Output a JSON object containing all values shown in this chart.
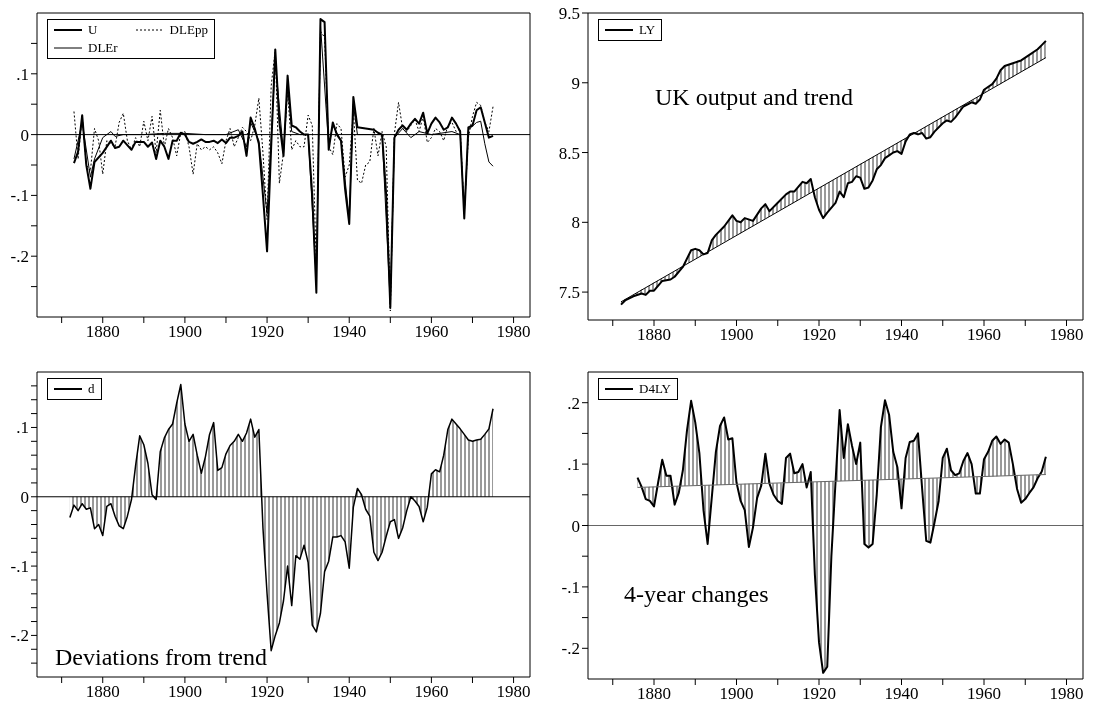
{
  "chart_data": [
    {
      "type": "line",
      "legend": "top left",
      "xlim": [
        1864,
        1984
      ],
      "ylim": [
        -0.3,
        0.2
      ],
      "xticks": [
        {
          "value": 1870,
          "label": null
        },
        1880,
        {
          "value": 1890,
          "label": null
        },
        1900,
        {
          "value": 1910,
          "label": null
        },
        1920,
        {
          "value": 1930,
          "label": null
        },
        1940,
        {
          "value": 1950,
          "label": null
        },
        1960,
        {
          "value": 1970,
          "label": null
        },
        1980
      ],
      "yticks": [
        {
          "value": -0.25,
          "label": null
        },
        {
          "value": -0.2,
          "label": "-.2"
        },
        {
          "value": -0.15,
          "label": null
        },
        {
          "value": -0.1,
          "label": "-.1"
        },
        {
          "value": -0.05,
          "label": null
        },
        0,
        {
          "value": 0.05,
          "label": null
        },
        {
          "value": 0.1,
          "label": ".1"
        },
        {
          "value": 0.15,
          "label": null
        }
      ],
      "ref_lines": [
        {
          "axis": "y",
          "value": 0,
          "color": "#000000"
        }
      ],
      "series": [
        {
          "name": "U",
          "color": "#000000",
          "line_style": "solid",
          "x": [
            1873,
            1874,
            1875,
            1876,
            1877,
            1878,
            1880,
            1882,
            1883,
            1884,
            1885,
            1887,
            1888,
            1890,
            1891,
            1892,
            1893,
            1894,
            1895,
            1896,
            1897,
            1898,
            1899,
            1900,
            1901,
            1902,
            1903,
            1904,
            1905,
            1906,
            1907,
            1908,
            1909,
            1910,
            1911,
            1912,
            1913,
            1914,
            1915,
            1916,
            1917,
            1918,
            1919,
            1920,
            1921,
            1922,
            1923,
            1924,
            1925,
            1926,
            1927,
            1928,
            1929,
            1930,
            1931,
            1932,
            1933,
            1934,
            1935,
            1936,
            1937,
            1938,
            1939,
            1940,
            1941,
            1942,
            1944,
            1946,
            1947,
            1948,
            1949,
            1950,
            1951,
            1952,
            1953,
            1954,
            1955,
            1956,
            1957,
            1958,
            1959,
            1960,
            1961,
            1962,
            1963,
            1964,
            1965,
            1966,
            1967,
            1968,
            1969,
            1970,
            1971,
            1972,
            1973,
            1974,
            1975
          ],
          "values": [
            -0.047,
            -0.028,
            0.032,
            -0.05,
            -0.089,
            -0.045,
            -0.03,
            -0.01,
            -0.022,
            -0.02,
            -0.01,
            -0.025,
            -0.012,
            -0.012,
            -0.02,
            -0.013,
            -0.04,
            -0.01,
            -0.02,
            -0.04,
            -0.01,
            -0.01,
            0.003,
            0,
            -0.012,
            -0.015,
            -0.012,
            -0.008,
            -0.012,
            -0.012,
            -0.01,
            -0.014,
            -0.008,
            -0.014,
            -0.005,
            -0.005,
            -0.002,
            0.005,
            -0.035,
            0.028,
            0.01,
            -0.015,
            -0.1,
            -0.192,
            -0.02,
            0.14,
            0.02,
            -0.035,
            0.097,
            0.015,
            0.012,
            0.005,
            0,
            0,
            -0.1,
            -0.26,
            0.19,
            0.185,
            -0.025,
            0.02,
            0,
            -0.01,
            -0.09,
            -0.147,
            0.062,
            0.012,
            0.01,
            0.008,
            0.003,
            0,
            -0.1,
            -0.285,
            -0.005,
            0.008,
            0.015,
            0.008,
            0.018,
            0.026,
            0.018,
            0.036,
            0.002,
            0.018,
            0.028,
            0.02,
            0.008,
            0.012,
            0.028,
            0.018,
            0.005,
            -0.138,
            0.012,
            0.015,
            0.04,
            0.045,
            0.02,
            -0.005,
            -0.002
          ]
        },
        {
          "name": "DLEr",
          "color": "#000000",
          "line_style": "solid",
          "x": [
            1873,
            1875,
            1877,
            1878,
            1880,
            1882,
            1883,
            1885,
            1890,
            1895,
            1900,
            1905,
            1910,
            1913,
            1915,
            1916,
            1918,
            1920,
            1922,
            1924,
            1925,
            1926,
            1928,
            1930,
            1932,
            1933,
            1935,
            1936,
            1938,
            1940,
            1941,
            1942,
            1946,
            1948,
            1950,
            1951,
            1953,
            1955,
            1957,
            1960,
            1965,
            1967,
            1968,
            1969,
            1971,
            1972,
            1973,
            1974,
            1975
          ],
          "values": [
            -0.04,
            0.02,
            -0.07,
            -0.04,
            -0.005,
            0.005,
            -0.003,
            0,
            0,
            0.002,
            0.002,
            0,
            0,
            0.008,
            -0.02,
            0.02,
            -0.01,
            -0.13,
            0.12,
            -0.03,
            0.08,
            0.005,
            0,
            0,
            -0.24,
            0.18,
            -0.02,
            0.015,
            -0.01,
            -0.14,
            0.05,
            0,
            0,
            0,
            -0.28,
            -0.005,
            0.01,
            -0.005,
            0.005,
            0,
            0.005,
            0,
            -0.13,
            0.008,
            0.02,
            0.022,
            -0.015,
            -0.045,
            -0.052
          ]
        },
        {
          "name": "DLEpp",
          "color": "#000000",
          "line_style": "dotted",
          "x": [
            1873,
            1874,
            1875,
            1876,
            1877,
            1878,
            1879,
            1880,
            1881,
            1883,
            1884,
            1885,
            1886,
            1887,
            1888,
            1889,
            1890,
            1891,
            1892,
            1893,
            1894,
            1895,
            1896,
            1897,
            1898,
            1899,
            1900,
            1901,
            1902,
            1903,
            1904,
            1905,
            1906,
            1907,
            1908,
            1909,
            1910,
            1911,
            1912,
            1913,
            1914,
            1915,
            1916,
            1917,
            1918,
            1919,
            1920,
            1921,
            1922,
            1923,
            1924,
            1925,
            1926,
            1927,
            1928,
            1929,
            1930,
            1931,
            1932,
            1933,
            1934,
            1935,
            1936,
            1937,
            1938,
            1939,
            1940,
            1941,
            1942,
            1943,
            1944,
            1945,
            1946,
            1947,
            1948,
            1949,
            1950,
            1951,
            1952,
            1953,
            1954,
            1955,
            1956,
            1957,
            1958,
            1959,
            1960,
            1961,
            1962,
            1963,
            1964,
            1965,
            1966,
            1967,
            1968,
            1969,
            1970,
            1971,
            1972,
            1973,
            1974,
            1975
          ],
          "values": [
            0.038,
            -0.04,
            0.03,
            -0.05,
            -0.06,
            0.01,
            -0.01,
            -0.065,
            -0.01,
            -0.02,
            0.02,
            0.035,
            -0.01,
            -0.025,
            -0.005,
            -0.02,
            0.022,
            -0.01,
            0.03,
            -0.03,
            0.04,
            -0.02,
            0.01,
            -0.005,
            -0.035,
            0.003,
            0.005,
            -0.02,
            -0.065,
            -0.015,
            -0.025,
            -0.02,
            -0.025,
            -0.02,
            -0.03,
            -0.048,
            -0.01,
            0.01,
            -0.02,
            -0.005,
            0.012,
            0.005,
            -0.01,
            0.015,
            0.06,
            -0.03,
            -0.14,
            0.08,
            0.14,
            -0.08,
            -0.03,
            0.07,
            -0.025,
            -0.01,
            -0.02,
            -0.02,
            0.032,
            0.015,
            -0.22,
            0.17,
            0.16,
            -0.02,
            -0.033,
            0.018,
            0.01,
            -0.07,
            -0.05,
            0.04,
            -0.075,
            -0.08,
            -0.05,
            -0.045,
            0.01,
            -0.035,
            0.005,
            -0.02,
            -0.29,
            0.002,
            0.053,
            0.01,
            0.005,
            0.015,
            0.025,
            0.005,
            0.03,
            -0.013,
            -0.005,
            0.01,
            0.005,
            -0.01,
            0.015,
            0.02,
            0.005,
            0.01,
            -0.13,
            -0.005,
            0.03,
            0.053,
            0.048,
            0.02,
            0.005,
            0.046
          ]
        }
      ]
    },
    {
      "type": "line",
      "title": "UK output and trend",
      "legend": "top left",
      "xlim": [
        1864,
        1984
      ],
      "ylim": [
        7.3,
        9.5
      ],
      "xticks": [
        {
          "value": 1870,
          "label": null
        },
        1880,
        {
          "value": 1890,
          "label": null
        },
        1900,
        {
          "value": 1910,
          "label": null
        },
        1920,
        {
          "value": 1930,
          "label": null
        },
        1940,
        {
          "value": 1950,
          "label": null
        },
        1960,
        {
          "value": 1970,
          "label": null
        },
        1980
      ],
      "yticks": [
        7.5,
        8,
        8.5,
        9,
        9.5
      ],
      "series": [
        {
          "name": "LY",
          "color": "#000000",
          "line_style": "solid",
          "x": [
            1872,
            1873,
            1875,
            1877,
            1878,
            1879,
            1880,
            1882,
            1884,
            1885,
            1887,
            1889,
            1890,
            1891,
            1892,
            1893,
            1894,
            1895,
            1897,
            1899,
            1900,
            1901,
            1902,
            1904,
            1906,
            1907,
            1908,
            1910,
            1912,
            1913,
            1914,
            1916,
            1917,
            1918,
            1919,
            1920,
            1921,
            1922,
            1924,
            1925,
            1926,
            1927,
            1928,
            1929,
            1930,
            1931,
            1932,
            1933,
            1934,
            1935,
            1936,
            1937,
            1938,
            1939,
            1940,
            1941,
            1942,
            1943,
            1944,
            1945,
            1946,
            1947,
            1948,
            1950,
            1951,
            1952,
            1953,
            1955,
            1957,
            1958,
            1959,
            1960,
            1962,
            1963,
            1964,
            1965,
            1967,
            1969,
            1971,
            1973,
            1974,
            1975
          ],
          "values": [
            7.41,
            7.44,
            7.47,
            7.49,
            7.48,
            7.51,
            7.51,
            7.58,
            7.59,
            7.61,
            7.68,
            7.8,
            7.81,
            7.8,
            7.77,
            7.78,
            7.87,
            7.91,
            7.97,
            8.05,
            8.01,
            8.0,
            8.03,
            8.01,
            8.1,
            8.13,
            8.08,
            8.14,
            8.2,
            8.22,
            8.22,
            8.29,
            8.28,
            8.31,
            8.18,
            8.09,
            8.03,
            8.07,
            8.14,
            8.22,
            8.18,
            8.28,
            8.29,
            8.33,
            8.32,
            8.24,
            8.25,
            8.3,
            8.38,
            8.41,
            8.46,
            8.48,
            8.5,
            8.51,
            8.49,
            8.58,
            8.63,
            8.64,
            8.63,
            8.64,
            8.6,
            8.61,
            8.65,
            8.71,
            8.73,
            8.72,
            8.75,
            8.83,
            8.86,
            8.85,
            8.88,
            8.95,
            8.99,
            9.03,
            9.09,
            9.12,
            9.14,
            9.16,
            9.2,
            9.24,
            9.27,
            9.3
          ],
          "lower": [
            7.43,
            7.45,
            7.48,
            7.52,
            7.53,
            7.55,
            7.57,
            7.6,
            7.63,
            7.65,
            7.69,
            7.72,
            7.74,
            7.75,
            7.77,
            7.79,
            7.8,
            7.82,
            7.86,
            7.89,
            7.91,
            7.92,
            7.94,
            7.97,
            8.01,
            8.03,
            8.04,
            8.08,
            8.11,
            8.13,
            8.14,
            8.18,
            8.2,
            8.21,
            8.23,
            8.25,
            8.26,
            8.28,
            8.31,
            8.33,
            8.35,
            8.36,
            8.38,
            8.4,
            8.42,
            8.43,
            8.45,
            8.47,
            8.48,
            8.5,
            8.52,
            8.53,
            8.55,
            8.57,
            8.59,
            8.6,
            8.62,
            8.64,
            8.65,
            8.67,
            8.69,
            8.7,
            8.72,
            8.76,
            8.77,
            8.79,
            8.81,
            8.84,
            8.87,
            8.89,
            8.91,
            8.93,
            8.96,
            8.98,
            8.99,
            9.01,
            9.04,
            9.08,
            9.11,
            9.15,
            9.16,
            9.18
          ],
          "upper": [
            7.41,
            7.44,
            7.47,
            7.49,
            7.48,
            7.51,
            7.51,
            7.58,
            7.59,
            7.61,
            7.68,
            7.8,
            7.81,
            7.8,
            7.77,
            7.78,
            7.87,
            7.91,
            7.97,
            8.05,
            8.01,
            8.0,
            8.03,
            8.01,
            8.1,
            8.13,
            8.08,
            8.14,
            8.2,
            8.22,
            8.22,
            8.29,
            8.28,
            8.31,
            8.18,
            8.09,
            8.03,
            8.07,
            8.14,
            8.22,
            8.18,
            8.28,
            8.29,
            8.33,
            8.32,
            8.24,
            8.25,
            8.3,
            8.38,
            8.41,
            8.46,
            8.48,
            8.5,
            8.51,
            8.49,
            8.58,
            8.63,
            8.64,
            8.63,
            8.64,
            8.6,
            8.61,
            8.65,
            8.71,
            8.73,
            8.72,
            8.75,
            8.83,
            8.86,
            8.85,
            8.88,
            8.95,
            8.99,
            9.03,
            9.09,
            9.12,
            9.14,
            9.16,
            9.2,
            9.24,
            9.27,
            9.3
          ]
        },
        {
          "color": "#000000",
          "line_style": "solid",
          "x": [
            1872,
            1975
          ],
          "values": [
            7.43,
            9.18
          ]
        }
      ]
    },
    {
      "type": "area",
      "title": "Deviations from trend",
      "legend": "top left",
      "xlim": [
        1864,
        1984
      ],
      "ylim": [
        -0.26,
        0.18
      ],
      "xticks": [
        {
          "value": 1870,
          "label": null
        },
        1880,
        {
          "value": 1890,
          "label": null
        },
        1900,
        {
          "value": 1910,
          "label": null
        },
        1920,
        {
          "value": 1930,
          "label": null
        },
        1940,
        {
          "value": 1950,
          "label": null
        },
        1960,
        {
          "value": 1970,
          "label": null
        },
        1980
      ],
      "yticks": [
        {
          "value": -0.24,
          "label": null
        },
        {
          "value": -0.22,
          "label": null
        },
        {
          "value": -0.2,
          "label": "-.2"
        },
        {
          "value": -0.18,
          "label": null
        },
        {
          "value": -0.16,
          "label": null
        },
        {
          "value": -0.14,
          "label": null
        },
        {
          "value": -0.12,
          "label": null
        },
        {
          "value": -0.1,
          "label": "-.1"
        },
        {
          "value": -0.08,
          "label": null
        },
        {
          "value": -0.06,
          "label": null
        },
        {
          "value": -0.04,
          "label": null
        },
        {
          "value": -0.02,
          "label": null
        },
        0,
        {
          "value": 0.02,
          "label": null
        },
        {
          "value": 0.04,
          "label": null
        },
        {
          "value": 0.06,
          "label": null
        },
        {
          "value": 0.08,
          "label": null
        },
        {
          "value": 0.1,
          "label": ".1"
        },
        {
          "value": 0.12,
          "label": null
        },
        {
          "value": 0.14,
          "label": null
        },
        {
          "value": 0.16,
          "label": null
        }
      ],
      "ref_lines": [
        {
          "axis": "y",
          "value": 0,
          "color": "#000000"
        }
      ],
      "series": [
        {
          "name": "d",
          "color": "#000000",
          "x": [
            1872,
            1873,
            1874,
            1875,
            1876,
            1877,
            1878,
            1879,
            1880,
            1881,
            1882,
            1883,
            1884,
            1885,
            1886,
            1887,
            1888,
            1889,
            1890,
            1891,
            1892,
            1893,
            1894,
            1895,
            1896,
            1897,
            1898,
            1899,
            1900,
            1901,
            1902,
            1903,
            1904,
            1905,
            1906,
            1907,
            1908,
            1909,
            1910,
            1911,
            1912,
            1913,
            1914,
            1915,
            1916,
            1917,
            1918,
            1919,
            1920,
            1921,
            1922,
            1923,
            1924,
            1925,
            1926,
            1927,
            1928,
            1929,
            1930,
            1931,
            1932,
            1933,
            1934,
            1935,
            1936,
            1937,
            1938,
            1939,
            1940,
            1941,
            1942,
            1943,
            1944,
            1945,
            1946,
            1947,
            1948,
            1949,
            1950,
            1951,
            1952,
            1953,
            1954,
            1955,
            1956,
            1957,
            1958,
            1959,
            1960,
            1961,
            1962,
            1963,
            1964,
            1965,
            1966,
            1967,
            1968,
            1969,
            1970,
            1971,
            1972,
            1973,
            1974,
            1975
          ],
          "values": [
            -0.03,
            -0.012,
            -0.02,
            -0.01,
            -0.018,
            -0.016,
            -0.046,
            -0.04,
            -0.056,
            -0.014,
            -0.01,
            -0.028,
            -0.042,
            -0.046,
            -0.028,
            -0.004,
            0.045,
            0.088,
            0.075,
            0.048,
            0.003,
            -0.004,
            0.065,
            0.085,
            0.097,
            0.105,
            0.135,
            0.162,
            0.105,
            0.08,
            0.09,
            0.06,
            0.034,
            0.058,
            0.09,
            0.107,
            0.038,
            0.042,
            0.062,
            0.074,
            0.08,
            0.09,
            0.08,
            0.092,
            0.112,
            0.086,
            0.097,
            -0.045,
            -0.14,
            -0.222,
            -0.2,
            -0.182,
            -0.15,
            -0.1,
            -0.157,
            -0.085,
            -0.09,
            -0.07,
            -0.095,
            -0.185,
            -0.195,
            -0.168,
            -0.108,
            -0.093,
            -0.058,
            -0.058,
            -0.056,
            -0.065,
            -0.103,
            -0.015,
            0.012,
            0.003,
            -0.018,
            -0.028,
            -0.08,
            -0.092,
            -0.08,
            -0.057,
            -0.036,
            -0.033,
            -0.06,
            -0.045,
            -0.02,
            0,
            -0.006,
            -0.014,
            -0.036,
            -0.015,
            0.033,
            0.039,
            0.036,
            0.06,
            0.097,
            0.112,
            0.105,
            0.098,
            0.09,
            0.082,
            0.08,
            0.082,
            0.083,
            0.09,
            0.098,
            0.127
          ]
        }
      ]
    },
    {
      "type": "line",
      "title": "4-year changes",
      "legend": "top left",
      "xlim": [
        1864,
        1984
      ],
      "ylim": [
        -0.25,
        0.25
      ],
      "xticks": [
        {
          "value": 1870,
          "label": null
        },
        1880,
        {
          "value": 1890,
          "label": null
        },
        1900,
        {
          "value": 1910,
          "label": null
        },
        1920,
        {
          "value": 1930,
          "label": null
        },
        1940,
        {
          "value": 1950,
          "label": null
        },
        1960,
        {
          "value": 1970,
          "label": null
        },
        1980
      ],
      "yticks": [
        {
          "value": -0.2,
          "label": "-.2"
        },
        {
          "value": -0.15,
          "label": null
        },
        {
          "value": -0.1,
          "label": "-.1"
        },
        {
          "value": -0.05,
          "label": null
        },
        0,
        {
          "value": 0.05,
          "label": null
        },
        {
          "value": 0.1,
          "label": ".1"
        },
        {
          "value": 0.15,
          "label": null
        },
        {
          "value": 0.2,
          "label": ".2"
        }
      ],
      "ref_lines": [
        {
          "axis": "y",
          "value": 0,
          "color": "#666666"
        }
      ],
      "series": [
        {
          "name": "D4LY",
          "color": "#000000",
          "line_style": "solid",
          "x": [
            1876,
            1877,
            1878,
            1879,
            1880,
            1881,
            1882,
            1883,
            1884,
            1885,
            1886,
            1887,
            1888,
            1889,
            1890,
            1891,
            1892,
            1893,
            1894,
            1895,
            1896,
            1897,
            1898,
            1899,
            1900,
            1901,
            1902,
            1903,
            1904,
            1905,
            1906,
            1907,
            1908,
            1909,
            1910,
            1911,
            1912,
            1913,
            1914,
            1915,
            1916,
            1917,
            1918,
            1919,
            1920,
            1921,
            1922,
            1923,
            1924,
            1925,
            1926,
            1927,
            1928,
            1929,
            1930,
            1931,
            1932,
            1933,
            1934,
            1935,
            1936,
            1937,
            1938,
            1939,
            1940,
            1941,
            1942,
            1943,
            1944,
            1945,
            1946,
            1947,
            1948,
            1949,
            1950,
            1951,
            1952,
            1953,
            1954,
            1955,
            1956,
            1957,
            1958,
            1959,
            1960,
            1961,
            1962,
            1963,
            1964,
            1965,
            1966,
            1967,
            1968,
            1969,
            1970,
            1971,
            1972,
            1973,
            1974,
            1975
          ],
          "values": [
            0.078,
            0.063,
            0.043,
            0.04,
            0.031,
            0.07,
            0.107,
            0.081,
            0.081,
            0.034,
            0.053,
            0.09,
            0.155,
            0.203,
            0.168,
            0.118,
            0.025,
            -0.03,
            0.045,
            0.12,
            0.162,
            0.176,
            0.14,
            0.142,
            0.07,
            0.04,
            0.025,
            -0.035,
            -0.003,
            0.045,
            0.065,
            0.117,
            0.068,
            0.05,
            0.04,
            0.035,
            0.11,
            0.117,
            0.085,
            0.087,
            0.1,
            0.062,
            0.087,
            -0.08,
            -0.19,
            -0.24,
            -0.23,
            -0.05,
            0.07,
            0.188,
            0.11,
            0.165,
            0.13,
            0.1,
            0.135,
            -0.03,
            -0.036,
            -0.03,
            0.05,
            0.16,
            0.204,
            0.18,
            0.12,
            0.095,
            0.028,
            0.11,
            0.136,
            0.138,
            0.15,
            0.06,
            -0.025,
            -0.028,
            0.005,
            0.04,
            0.11,
            0.125,
            0.09,
            0.082,
            0.085,
            0.105,
            0.118,
            0.1,
            0.052,
            0.052,
            0.108,
            0.12,
            0.138,
            0.145,
            0.133,
            0.14,
            0.135,
            0.1,
            0.06,
            0.037,
            0.043,
            0.053,
            0.062,
            0.077,
            0.088,
            0.112
          ],
          "lower": [
            0.062,
            0.062,
            0.062,
            0.063,
            0.063,
            0.063,
            0.063,
            0.063,
            0.064,
            0.064,
            0.064,
            0.064,
            0.065,
            0.065,
            0.065,
            0.065,
            0.065,
            0.066,
            0.066,
            0.066,
            0.066,
            0.066,
            0.067,
            0.067,
            0.067,
            0.067,
            0.068,
            0.068,
            0.068,
            0.068,
            0.068,
            0.069,
            0.069,
            0.069,
            0.069,
            0.069,
            0.07,
            0.07,
            0.07,
            0.07,
            0.07,
            0.071,
            0.071,
            0.071,
            0.071,
            0.072,
            0.072,
            0.072,
            0.072,
            0.072,
            0.073,
            0.073,
            0.073,
            0.073,
            0.073,
            0.074,
            0.074,
            0.074,
            0.074,
            0.075,
            0.075,
            0.075,
            0.075,
            0.075,
            0.076,
            0.076,
            0.076,
            0.076,
            0.076,
            0.077,
            0.077,
            0.077,
            0.077,
            0.077,
            0.078,
            0.078,
            0.078,
            0.078,
            0.079,
            0.079,
            0.079,
            0.079,
            0.079,
            0.08,
            0.08,
            0.08,
            0.08,
            0.08,
            0.081,
            0.081,
            0.081,
            0.081,
            0.082,
            0.082,
            0.082,
            0.082,
            0.082,
            0.083,
            0.083,
            0.083
          ],
          "upper": [
            0.078,
            0.063,
            0.043,
            0.04,
            0.031,
            0.07,
            0.107,
            0.081,
            0.081,
            0.034,
            0.053,
            0.09,
            0.155,
            0.203,
            0.168,
            0.118,
            0.025,
            -0.03,
            0.045,
            0.12,
            0.162,
            0.176,
            0.14,
            0.142,
            0.07,
            0.04,
            0.025,
            -0.035,
            -0.003,
            0.045,
            0.065,
            0.117,
            0.068,
            0.05,
            0.04,
            0.035,
            0.11,
            0.117,
            0.085,
            0.087,
            0.1,
            0.062,
            0.087,
            -0.08,
            -0.19,
            -0.24,
            -0.23,
            -0.05,
            0.07,
            0.188,
            0.11,
            0.165,
            0.13,
            0.1,
            0.135,
            -0.03,
            -0.036,
            -0.03,
            0.05,
            0.16,
            0.204,
            0.18,
            0.12,
            0.095,
            0.028,
            0.11,
            0.136,
            0.138,
            0.15,
            0.06,
            -0.025,
            -0.028,
            0.005,
            0.04,
            0.11,
            0.125,
            0.09,
            0.082,
            0.085,
            0.105,
            0.118,
            0.1,
            0.052,
            0.052,
            0.108,
            0.12,
            0.138,
            0.145,
            0.133,
            0.14,
            0.135,
            0.1,
            0.06,
            0.037,
            0.043,
            0.053,
            0.062,
            0.077,
            0.088,
            0.112
          ]
        },
        {
          "color": "#666666",
          "line_style": "solid",
          "x": [
            1876,
            1975
          ],
          "values": [
            0.062,
            0.083
          ]
        }
      ]
    }
  ]
}
